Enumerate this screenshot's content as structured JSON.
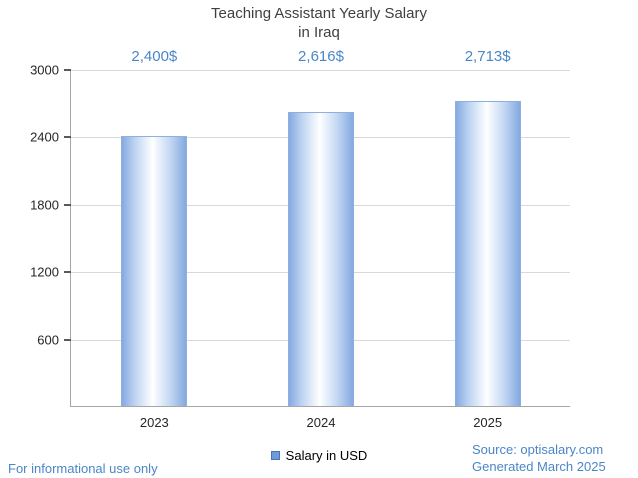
{
  "title": {
    "line1": "Teaching Assistant Yearly Salary",
    "line2": "in Iraq"
  },
  "chart_data": {
    "type": "bar",
    "title": "Teaching Assistant Yearly Salary in Iraq",
    "categories": [
      "2023",
      "2024",
      "2025"
    ],
    "values": [
      2400,
      2616,
      2713
    ],
    "value_labels": [
      "2,400$",
      "2,616$",
      "2,713$"
    ],
    "series_name": "Salary in USD",
    "xlabel": "",
    "ylabel": "",
    "ylim": [
      0,
      3000
    ],
    "yticks": [
      600,
      1200,
      1800,
      2400,
      3000
    ],
    "grid": true,
    "legend_position": "bottom"
  },
  "legend": {
    "label": "Salary in USD"
  },
  "footer": {
    "disclaimer": "For informational use only",
    "source": "Source: optisalary.com",
    "generated": "Generated March 2025"
  },
  "colors": {
    "accent_blue": "#4a86c8",
    "bar_edge": "#85a9e0",
    "bar_center": "#ffffff",
    "bar_border": "#8fb0de",
    "legend_swatch": "#6f9ad8",
    "grid": "#d9d9d9",
    "axis": "#a6a6a6",
    "title_text": "#3f3f3f"
  }
}
